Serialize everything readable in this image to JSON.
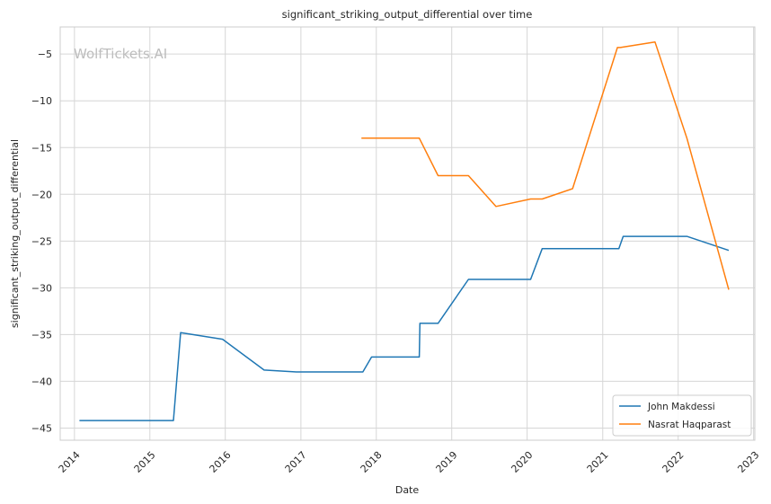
{
  "chart_data": {
    "type": "line",
    "title": "significant_striking_output_differential over time",
    "xlabel": "Date",
    "ylabel": "significant_striking_output_differential",
    "watermark": "WolfTickets.AI",
    "x_ticks": [
      "2014",
      "2015",
      "2016",
      "2017",
      "2018",
      "2019",
      "2020",
      "2021",
      "2022",
      "2023"
    ],
    "y_ticks": [
      -45,
      -40,
      -35,
      -30,
      -25,
      -20,
      -15,
      -10,
      -5
    ],
    "xlim": [
      "2013-10-24",
      "2023-01-07"
    ],
    "ylim": [
      -46.3,
      -2.1
    ],
    "grid": true,
    "legend_position": "lower-right",
    "series": [
      {
        "name": "John Makdessi",
        "color": "#1f77b4",
        "points": [
          [
            "2014-01-25",
            -44.2
          ],
          [
            "2015-04-25",
            -44.2
          ],
          [
            "2015-05-30",
            -34.8
          ],
          [
            "2015-12-19",
            -35.5
          ],
          [
            "2016-07-07",
            -38.8
          ],
          [
            "2016-12-10",
            -39.0
          ],
          [
            "2017-10-28",
            -39.0
          ],
          [
            "2017-12-09",
            -37.4
          ],
          [
            "2018-07-28",
            -37.4
          ],
          [
            "2018-07-31",
            -33.8
          ],
          [
            "2018-10-27",
            -33.8
          ],
          [
            "2019-03-23",
            -29.1
          ],
          [
            "2020-01-18",
            -29.1
          ],
          [
            "2020-03-14",
            -25.8
          ],
          [
            "2021-03-20",
            -25.8
          ],
          [
            "2021-04-10",
            -24.5
          ],
          [
            "2022-02-12",
            -24.5
          ],
          [
            "2022-09-03",
            -26.0
          ]
        ]
      },
      {
        "name": "Nasrat Haqparast",
        "color": "#ff7f0e",
        "points": [
          [
            "2017-10-21",
            -14.0
          ],
          [
            "2018-07-28",
            -14.0
          ],
          [
            "2018-10-27",
            -18.0
          ],
          [
            "2019-03-23",
            -18.0
          ],
          [
            "2019-08-03",
            -21.3
          ],
          [
            "2020-01-18",
            -20.5
          ],
          [
            "2020-03-14",
            -20.5
          ],
          [
            "2020-08-08",
            -19.4
          ],
          [
            "2021-03-13",
            -4.3
          ],
          [
            "2021-03-27",
            -4.3
          ],
          [
            "2021-09-11",
            -3.7
          ],
          [
            "2022-02-12",
            -14.0
          ],
          [
            "2022-09-03",
            -30.2
          ]
        ]
      }
    ]
  }
}
